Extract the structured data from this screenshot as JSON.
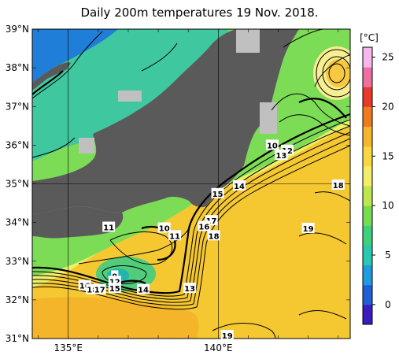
{
  "title": "Daily 200m temperatures 19 Nov. 2018.",
  "map": {
    "lat_labels": [
      "39°N",
      "38°N",
      "37°N",
      "36°N",
      "35°N",
      "34°N",
      "33°N",
      "32°N",
      "31°N"
    ],
    "lon_labels": [
      "135°E",
      "140°E"
    ],
    "lat_range": [
      31,
      39
    ],
    "lon_range": [
      133.8,
      144.4
    ]
  },
  "colorbar": {
    "unit": "[°C]",
    "ticks": [
      "25",
      "20",
      "15",
      "10",
      "5",
      "0"
    ],
    "range": [
      -2,
      26
    ],
    "colors": [
      "#3a1dc0",
      "#1f5fd8",
      "#1f9be0",
      "#25c9b4",
      "#3fd07a",
      "#74de4e",
      "#bfe64a",
      "#f2ee6a",
      "#f9d740",
      "#f6b52a",
      "#f07a1e",
      "#e83a2a",
      "#f06fa0",
      "#f5b8ec"
    ]
  },
  "contour_labels": [
    {
      "text": "10",
      "lon": 141.8,
      "lat": 36.0
    },
    {
      "text": "12",
      "lon": 142.3,
      "lat": 35.87
    },
    {
      "text": "13",
      "lon": 142.1,
      "lat": 35.74
    },
    {
      "text": "14",
      "lon": 140.7,
      "lat": 34.95
    },
    {
      "text": "18",
      "lon": 144.0,
      "lat": 34.97
    },
    {
      "text": "15",
      "lon": 139.98,
      "lat": 34.75
    },
    {
      "text": "17",
      "lon": 139.77,
      "lat": 34.05
    },
    {
      "text": "16",
      "lon": 139.53,
      "lat": 33.9
    },
    {
      "text": "11",
      "lon": 136.35,
      "lat": 33.88
    },
    {
      "text": "10",
      "lon": 138.2,
      "lat": 33.86
    },
    {
      "text": "19",
      "lon": 143.0,
      "lat": 33.85
    },
    {
      "text": "11",
      "lon": 138.55,
      "lat": 33.66
    },
    {
      "text": "18",
      "lon": 139.85,
      "lat": 33.66
    },
    {
      "text": "9",
      "lon": 136.55,
      "lat": 32.62
    },
    {
      "text": "12",
      "lon": 136.55,
      "lat": 32.48
    },
    {
      "text": "16",
      "lon": 135.55,
      "lat": 32.37
    },
    {
      "text": "18",
      "lon": 135.8,
      "lat": 32.27
    },
    {
      "text": "17",
      "lon": 136.05,
      "lat": 32.27
    },
    {
      "text": "15",
      "lon": 136.55,
      "lat": 32.3
    },
    {
      "text": "14",
      "lon": 137.5,
      "lat": 32.27
    },
    {
      "text": "13",
      "lon": 139.05,
      "lat": 32.3
    },
    {
      "text": "19",
      "lon": 140.3,
      "lat": 31.08
    }
  ]
}
